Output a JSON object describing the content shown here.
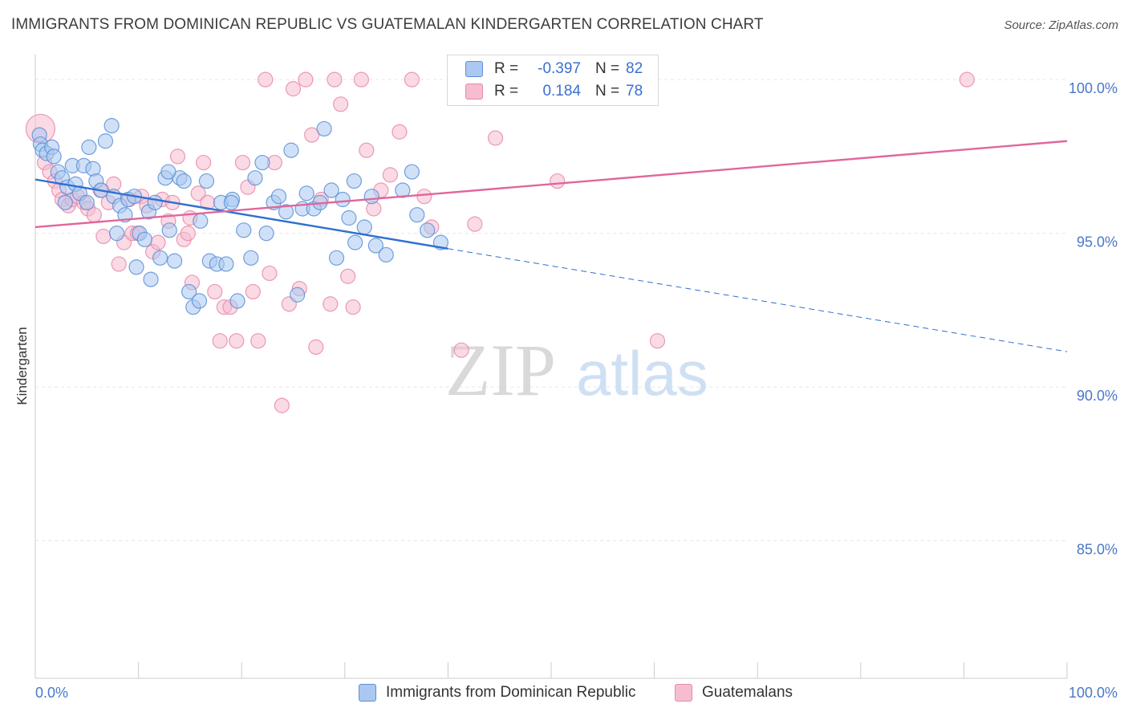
{
  "title": "IMMIGRANTS FROM DOMINICAN REPUBLIC VS GUATEMALAN KINDERGARTEN CORRELATION CHART",
  "source": "Source: ZipAtlas.com",
  "watermark": "ZIPatlas",
  "legend": {
    "rows": [
      {
        "r_label": "R =",
        "r_value": "-0.397",
        "n_label": "N =",
        "n_value": "82"
      },
      {
        "r_label": "R =",
        "r_value": "0.184",
        "n_label": "N =",
        "n_value": "78"
      }
    ]
  },
  "bottom_legend": {
    "items": [
      "Immigrants from Dominican Republic",
      "Guatemalans"
    ]
  },
  "colors": {
    "blue_fill": "#aac8f0",
    "blue_stroke": "#5b8fd8",
    "blue_line": "#2f6fcf",
    "pink_fill": "#f6bcd0",
    "pink_stroke": "#e88aa8",
    "pink_line": "#e0679a",
    "grid": "#e6e6e6",
    "tick_text": "#4a78c8"
  },
  "chart_data": {
    "type": "scatter",
    "title": "IMMIGRANTS FROM DOMINICAN REPUBLIC VS GUATEMALAN KINDERGARTEN CORRELATION CHART",
    "xlabel": "",
    "ylabel": "Kindergarten",
    "xlim": [
      0,
      100
    ],
    "ylim": [
      80.5,
      100.5
    ],
    "x_tick_labels": [
      "0.0%",
      "100.0%"
    ],
    "y_ticks": [
      85,
      90,
      95,
      100
    ],
    "y_tick_labels": [
      "85.0%",
      "90.0%",
      "95.0%",
      "100.0%"
    ],
    "grid": true,
    "legend_position": "top-center",
    "series": [
      {
        "name": "Immigrants from Dominican Republic",
        "color": "#aac8f0",
        "r": -0.397,
        "n": 82,
        "trend": {
          "x0": 0,
          "y0": 96.75,
          "x1": 40,
          "y1": 94.5,
          "dashed_to_x": 100,
          "dashed_to_y": 91.15
        },
        "points": [
          [
            0.4,
            98.2
          ],
          [
            0.5,
            97.9
          ],
          [
            0.7,
            97.7
          ],
          [
            1.1,
            97.6
          ],
          [
            1.6,
            97.8
          ],
          [
            1.8,
            97.5
          ],
          [
            2.2,
            97.0
          ],
          [
            2.6,
            96.8
          ],
          [
            3.1,
            96.5
          ],
          [
            3.6,
            97.2
          ],
          [
            3.9,
            96.6
          ],
          [
            4.3,
            96.3
          ],
          [
            4.7,
            97.2
          ],
          [
            5.2,
            97.8
          ],
          [
            5.6,
            97.1
          ],
          [
            5.9,
            96.7
          ],
          [
            6.4,
            96.4
          ],
          [
            6.8,
            98.0
          ],
          [
            7.4,
            98.5
          ],
          [
            7.6,
            96.2
          ],
          [
            8.2,
            95.9
          ],
          [
            8.7,
            95.6
          ],
          [
            9.0,
            96.1
          ],
          [
            9.6,
            96.2
          ],
          [
            10.1,
            95.0
          ],
          [
            10.6,
            94.8
          ],
          [
            11.0,
            95.7
          ],
          [
            11.6,
            96.0
          ],
          [
            12.1,
            94.2
          ],
          [
            12.6,
            96.8
          ],
          [
            13.0,
            95.1
          ],
          [
            13.5,
            94.1
          ],
          [
            14.0,
            96.8
          ],
          [
            14.4,
            96.7
          ],
          [
            14.9,
            93.1
          ],
          [
            15.3,
            92.6
          ],
          [
            15.9,
            92.8
          ],
          [
            16.6,
            96.7
          ],
          [
            16.9,
            94.1
          ],
          [
            17.6,
            94.0
          ],
          [
            18.0,
            96.0
          ],
          [
            18.5,
            94.0
          ],
          [
            19.1,
            96.1
          ],
          [
            19.6,
            92.8
          ],
          [
            20.2,
            95.1
          ],
          [
            20.9,
            94.2
          ],
          [
            21.3,
            96.8
          ],
          [
            22.0,
            97.3
          ],
          [
            22.4,
            95.0
          ],
          [
            23.1,
            96.0
          ],
          [
            23.6,
            96.2
          ],
          [
            24.3,
            95.7
          ],
          [
            24.8,
            97.7
          ],
          [
            25.4,
            93.0
          ],
          [
            25.9,
            95.8
          ],
          [
            26.3,
            96.3
          ],
          [
            27.0,
            95.8
          ],
          [
            27.6,
            96.0
          ],
          [
            28.0,
            98.4
          ],
          [
            28.7,
            96.4
          ],
          [
            29.2,
            94.2
          ],
          [
            29.8,
            96.1
          ],
          [
            30.4,
            95.5
          ],
          [
            31.0,
            94.7
          ],
          [
            31.9,
            95.2
          ],
          [
            32.6,
            96.2
          ],
          [
            33.0,
            94.6
          ],
          [
            34.0,
            94.3
          ],
          [
            35.6,
            96.4
          ],
          [
            36.5,
            97.0
          ],
          [
            37.0,
            95.6
          ],
          [
            38.0,
            95.1
          ],
          [
            39.3,
            94.7
          ],
          [
            5.0,
            96.0
          ],
          [
            7.9,
            95.0
          ],
          [
            9.8,
            93.9
          ],
          [
            12.9,
            97.0
          ],
          [
            19.0,
            96.0
          ],
          [
            11.2,
            93.5
          ],
          [
            2.9,
            96.0
          ],
          [
            16.0,
            95.4
          ],
          [
            30.9,
            96.7
          ]
        ]
      },
      {
        "name": "Guatemalans",
        "color": "#f6bcd0",
        "r": 0.184,
        "n": 78,
        "trend": {
          "x0": 0,
          "y0": 95.2,
          "x1": 100,
          "y1": 98.0
        },
        "points": [
          [
            0.5,
            98.4
          ],
          [
            0.9,
            97.3
          ],
          [
            1.4,
            97.0
          ],
          [
            1.9,
            96.7
          ],
          [
            2.3,
            96.4
          ],
          [
            2.6,
            96.1
          ],
          [
            3.2,
            95.9
          ],
          [
            3.6,
            96.1
          ],
          [
            4.1,
            96.2
          ],
          [
            4.7,
            96.0
          ],
          [
            5.1,
            95.8
          ],
          [
            5.7,
            95.6
          ],
          [
            6.3,
            96.4
          ],
          [
            6.6,
            94.9
          ],
          [
            7.1,
            96.0
          ],
          [
            7.6,
            96.6
          ],
          [
            8.1,
            94.0
          ],
          [
            8.6,
            94.7
          ],
          [
            9.1,
            96.1
          ],
          [
            9.4,
            95.0
          ],
          [
            9.9,
            95.0
          ],
          [
            10.3,
            96.2
          ],
          [
            10.8,
            95.9
          ],
          [
            11.4,
            94.4
          ],
          [
            11.9,
            94.7
          ],
          [
            12.3,
            96.1
          ],
          [
            12.9,
            95.4
          ],
          [
            13.3,
            96.0
          ],
          [
            13.8,
            97.5
          ],
          [
            14.4,
            94.8
          ],
          [
            14.8,
            95.0
          ],
          [
            15.2,
            93.4
          ],
          [
            15.8,
            96.3
          ],
          [
            16.3,
            97.3
          ],
          [
            16.7,
            96.0
          ],
          [
            17.4,
            93.1
          ],
          [
            17.9,
            91.5
          ],
          [
            18.3,
            92.6
          ],
          [
            18.9,
            92.6
          ],
          [
            19.5,
            91.5
          ],
          [
            20.1,
            97.3
          ],
          [
            20.6,
            96.5
          ],
          [
            21.1,
            93.1
          ],
          [
            21.6,
            91.5
          ],
          [
            22.3,
            100.0
          ],
          [
            22.7,
            93.7
          ],
          [
            23.2,
            97.3
          ],
          [
            23.9,
            89.4
          ],
          [
            24.6,
            92.7
          ],
          [
            25.0,
            99.7
          ],
          [
            25.6,
            93.2
          ],
          [
            26.2,
            100.0
          ],
          [
            26.8,
            98.2
          ],
          [
            27.2,
            91.3
          ],
          [
            27.7,
            96.1
          ],
          [
            28.6,
            92.7
          ],
          [
            29.0,
            100.0
          ],
          [
            29.6,
            99.2
          ],
          [
            30.3,
            93.6
          ],
          [
            30.8,
            92.6
          ],
          [
            31.6,
            100.0
          ],
          [
            32.1,
            97.7
          ],
          [
            32.8,
            95.8
          ],
          [
            33.5,
            96.4
          ],
          [
            34.4,
            96.9
          ],
          [
            35.3,
            98.3
          ],
          [
            36.5,
            100.0
          ],
          [
            37.7,
            96.2
          ],
          [
            38.4,
            95.2
          ],
          [
            41.3,
            91.2
          ],
          [
            42.6,
            95.3
          ],
          [
            44.6,
            98.1
          ],
          [
            50.6,
            96.7
          ],
          [
            52.6,
            100.0
          ],
          [
            55.5,
            100.0
          ],
          [
            60.3,
            91.5
          ],
          [
            90.3,
            100.0
          ],
          [
            15.0,
            95.5
          ]
        ]
      }
    ]
  }
}
